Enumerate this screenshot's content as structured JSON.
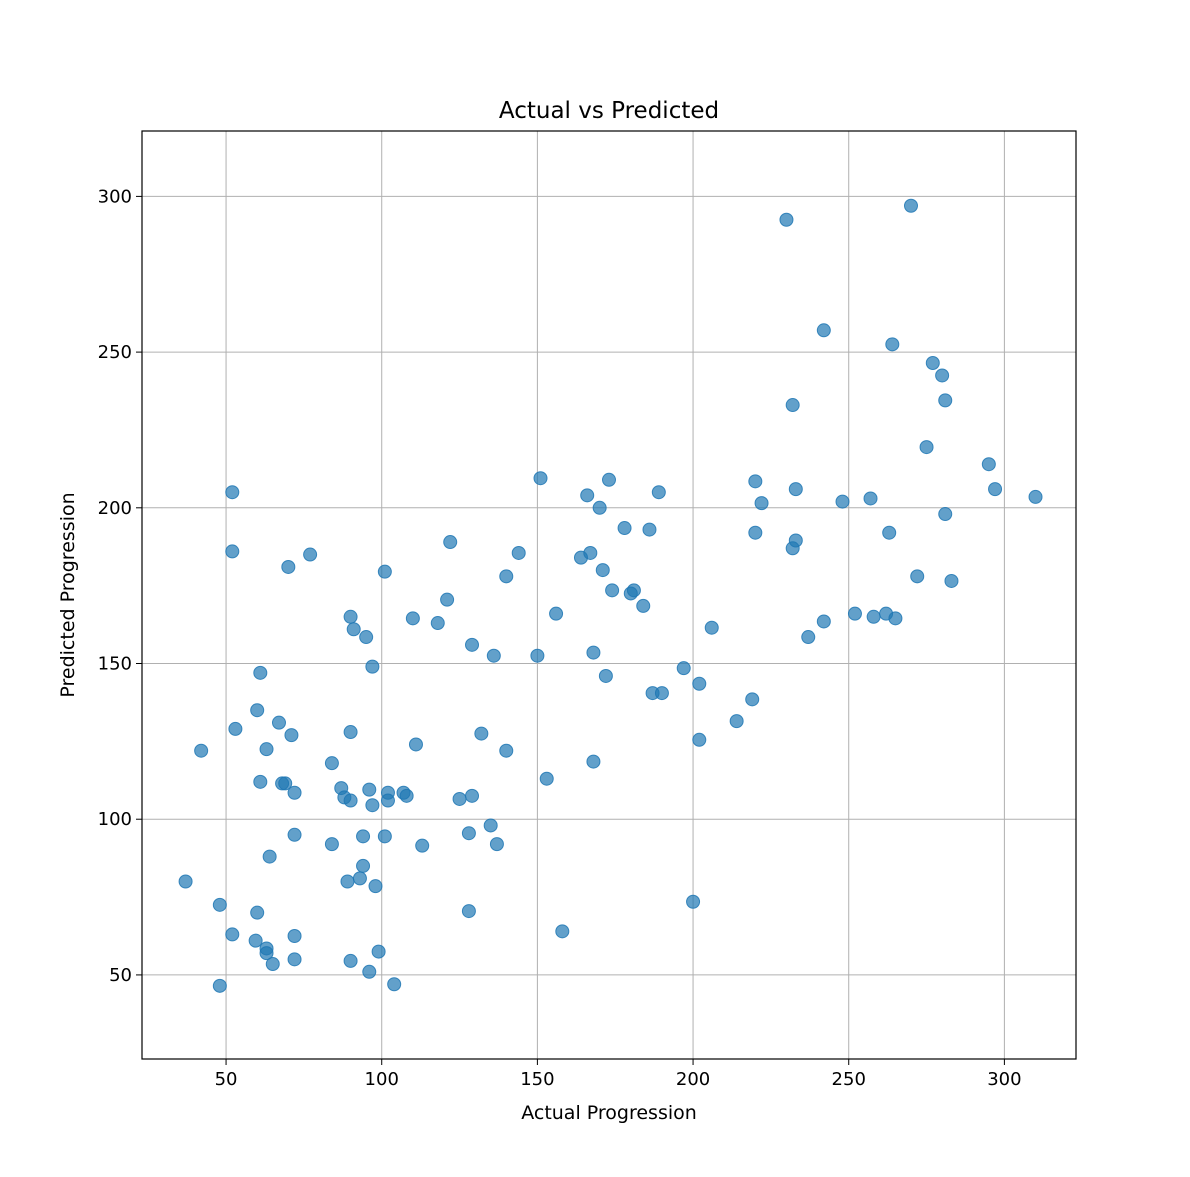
{
  "chart_data": {
    "type": "scatter",
    "title": "Actual vs Predicted",
    "xlabel": "Actual Progression",
    "ylabel": "Predicted Progression",
    "xlim": [
      23,
      323
    ],
    "ylim": [
      23,
      321
    ],
    "xticks": [
      50,
      100,
      150,
      200,
      250,
      300
    ],
    "yticks": [
      50,
      100,
      150,
      200,
      250,
      300
    ],
    "grid": true,
    "marker_color": "#1f77b4",
    "marker_alpha": 0.7,
    "points": [
      [
        37,
        80
      ],
      [
        42,
        122
      ],
      [
        48,
        72.5
      ],
      [
        48,
        46.5
      ],
      [
        52,
        205
      ],
      [
        52,
        186
      ],
      [
        52,
        63
      ],
      [
        53,
        129
      ],
      [
        59.5,
        61
      ],
      [
        60,
        70
      ],
      [
        60,
        135
      ],
      [
        61,
        147
      ],
      [
        61,
        112
      ],
      [
        63,
        122.5
      ],
      [
        63,
        58.5
      ],
      [
        63,
        57
      ],
      [
        64,
        88
      ],
      [
        65,
        53.5
      ],
      [
        67,
        131
      ],
      [
        68,
        111.5
      ],
      [
        69,
        111.5
      ],
      [
        70,
        181
      ],
      [
        71,
        127
      ],
      [
        72,
        108.5
      ],
      [
        72,
        95
      ],
      [
        72,
        62.5
      ],
      [
        72,
        55
      ],
      [
        77,
        185
      ],
      [
        84,
        118
      ],
      [
        84,
        92
      ],
      [
        87,
        110
      ],
      [
        88,
        107
      ],
      [
        89,
        80
      ],
      [
        90,
        165
      ],
      [
        90,
        128
      ],
      [
        90,
        106
      ],
      [
        90,
        54.5
      ],
      [
        91,
        161
      ],
      [
        93,
        81
      ],
      [
        94,
        94.5
      ],
      [
        94,
        85
      ],
      [
        95,
        158.5
      ],
      [
        96,
        109.5
      ],
      [
        96,
        51
      ],
      [
        97,
        149
      ],
      [
        97,
        104.5
      ],
      [
        98,
        78.5
      ],
      [
        99,
        57.5
      ],
      [
        101,
        179.5
      ],
      [
        101,
        94.5
      ],
      [
        102,
        108.5
      ],
      [
        102,
        106
      ],
      [
        104,
        47
      ],
      [
        107,
        108.5
      ],
      [
        108,
        107.5
      ],
      [
        110,
        164.5
      ],
      [
        111,
        124
      ],
      [
        113,
        91.5
      ],
      [
        118,
        163
      ],
      [
        121,
        170.5
      ],
      [
        122,
        189
      ],
      [
        125,
        106.5
      ],
      [
        128,
        95.5
      ],
      [
        128,
        70.5
      ],
      [
        129,
        156
      ],
      [
        129,
        107.5
      ],
      [
        132,
        127.5
      ],
      [
        135,
        98
      ],
      [
        136,
        152.5
      ],
      [
        137,
        92
      ],
      [
        140,
        178
      ],
      [
        140,
        122
      ],
      [
        144,
        185.5
      ],
      [
        150,
        152.5
      ],
      [
        151,
        209.5
      ],
      [
        153,
        113
      ],
      [
        156,
        166
      ],
      [
        158,
        64
      ],
      [
        164,
        184
      ],
      [
        166,
        204
      ],
      [
        167,
        185.5
      ],
      [
        168,
        153.5
      ],
      [
        168,
        118.5
      ],
      [
        170,
        200
      ],
      [
        171,
        180
      ],
      [
        172,
        146
      ],
      [
        173,
        209
      ],
      [
        174,
        173.5
      ],
      [
        178,
        193.5
      ],
      [
        180,
        172.5
      ],
      [
        181,
        173.5
      ],
      [
        184,
        168.5
      ],
      [
        186,
        193
      ],
      [
        187,
        140.5
      ],
      [
        189,
        205
      ],
      [
        190,
        140.5
      ],
      [
        197,
        148.5
      ],
      [
        200,
        73.5
      ],
      [
        202,
        143.5
      ],
      [
        202,
        125.5
      ],
      [
        206,
        161.5
      ],
      [
        214,
        131.5
      ],
      [
        219,
        138.5
      ],
      [
        220,
        208.5
      ],
      [
        220,
        192
      ],
      [
        222,
        201.5
      ],
      [
        230,
        292.5
      ],
      [
        232,
        233
      ],
      [
        232,
        187
      ],
      [
        233,
        206
      ],
      [
        233,
        189.5
      ],
      [
        237,
        158.5
      ],
      [
        242,
        257
      ],
      [
        242,
        163.5
      ],
      [
        248,
        202
      ],
      [
        252,
        166
      ],
      [
        257,
        203
      ],
      [
        258,
        165
      ],
      [
        262,
        166
      ],
      [
        263,
        192
      ],
      [
        264,
        252.5
      ],
      [
        265,
        164.5
      ],
      [
        270,
        297
      ],
      [
        272,
        178
      ],
      [
        275,
        219.5
      ],
      [
        277,
        246.5
      ],
      [
        280,
        242.5
      ],
      [
        281,
        234.5
      ],
      [
        281,
        198
      ],
      [
        283,
        176.5
      ],
      [
        295,
        214
      ],
      [
        297,
        206
      ],
      [
        310,
        203.5
      ]
    ]
  }
}
